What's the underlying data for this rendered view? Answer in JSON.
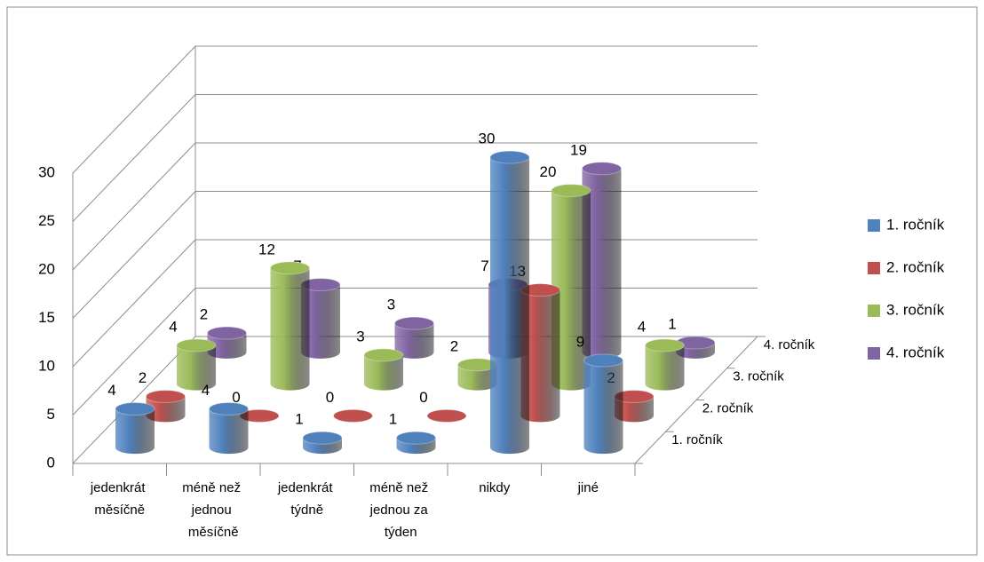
{
  "chart_data": {
    "type": "bar3d",
    "categories": [
      "jedenkrát měsíčně",
      "méně než jednou měsíčně",
      "jedenkrát týdně",
      "méně než jednou za týden",
      "nikdy",
      "jiné"
    ],
    "series": [
      {
        "name": "1. ročník",
        "color": "#4f81bd",
        "values": [
          4,
          4,
          1,
          1,
          30,
          9
        ]
      },
      {
        "name": "2. ročník",
        "color": "#c0504d",
        "values": [
          2,
          0,
          0,
          0,
          13,
          2
        ]
      },
      {
        "name": "3. ročník",
        "color": "#9bbb59",
        "values": [
          4,
          12,
          3,
          2,
          20,
          4
        ]
      },
      {
        "name": "4. ročník",
        "color": "#8064a2",
        "values": [
          2,
          7,
          3,
          7,
          19,
          1
        ]
      }
    ],
    "ylim": [
      0,
      30
    ],
    "yticks": [
      0,
      5,
      10,
      15,
      20,
      25,
      30
    ],
    "grid": true,
    "legend": "right"
  }
}
